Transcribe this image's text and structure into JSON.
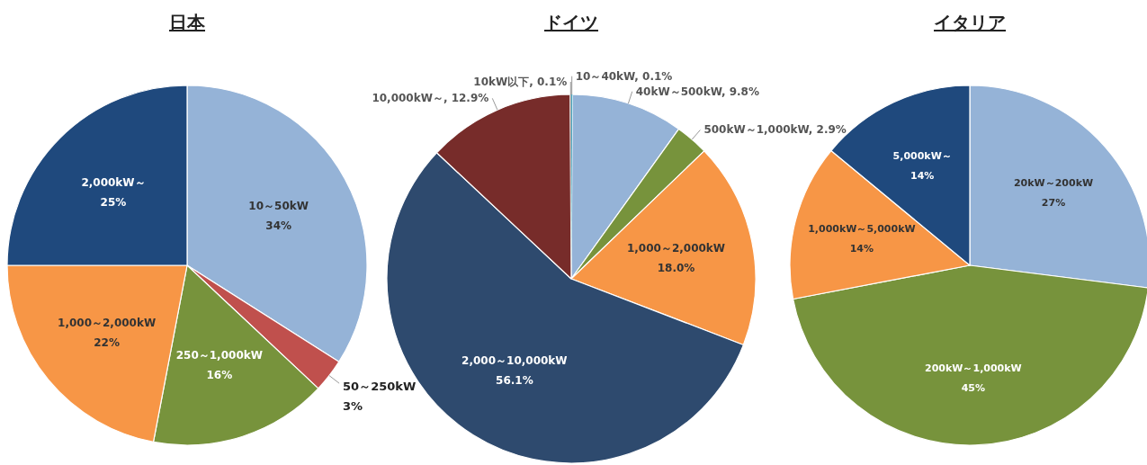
{
  "chart_data": [
    {
      "type": "pie",
      "title": "日本",
      "categories": [
        "10～50kW",
        "50～250kW",
        "250～1,000kW",
        "1,000～2,000kW",
        "2,000kW～"
      ],
      "values": [
        34,
        3,
        16,
        22,
        25
      ],
      "colors": [
        "#95b3d7",
        "#c0504d",
        "#77933c",
        "#f79646",
        "#1f497d"
      ],
      "value_labels": [
        "34%",
        "3%",
        "16%",
        "22%",
        "25%"
      ]
    },
    {
      "type": "pie",
      "title": "ドイツ",
      "categories": [
        "10～40kW",
        "40kW～500kW",
        "500kW～1,000kW",
        "1,000～2,000kW",
        "2,000～10,000kW",
        "10,000kW～",
        "10kW以下"
      ],
      "values": [
        0.1,
        9.8,
        2.9,
        18.0,
        56.1,
        12.9,
        0.1
      ],
      "colors": [
        "#4bacc6",
        "#95b3d7",
        "#77933c",
        "#f79646",
        "#2e4a6e",
        "#772c2a",
        "#a5a5a5"
      ],
      "value_labels": [
        "0.1%",
        "9.8%",
        "2.9%",
        "18.0%",
        "56.1%",
        "12.9%",
        "0.1%"
      ]
    },
    {
      "type": "pie",
      "title": "イタリア",
      "categories": [
        "20kW～200kW",
        "200kW～1,000kW",
        "1,000kW～5,000kW",
        "5,000kW～"
      ],
      "values": [
        27,
        45,
        14,
        14
      ],
      "colors": [
        "#95b3d7",
        "#77933c",
        "#f79646",
        "#1f497d"
      ],
      "value_labels": [
        "27%",
        "45%",
        "14%",
        "14%"
      ]
    }
  ]
}
